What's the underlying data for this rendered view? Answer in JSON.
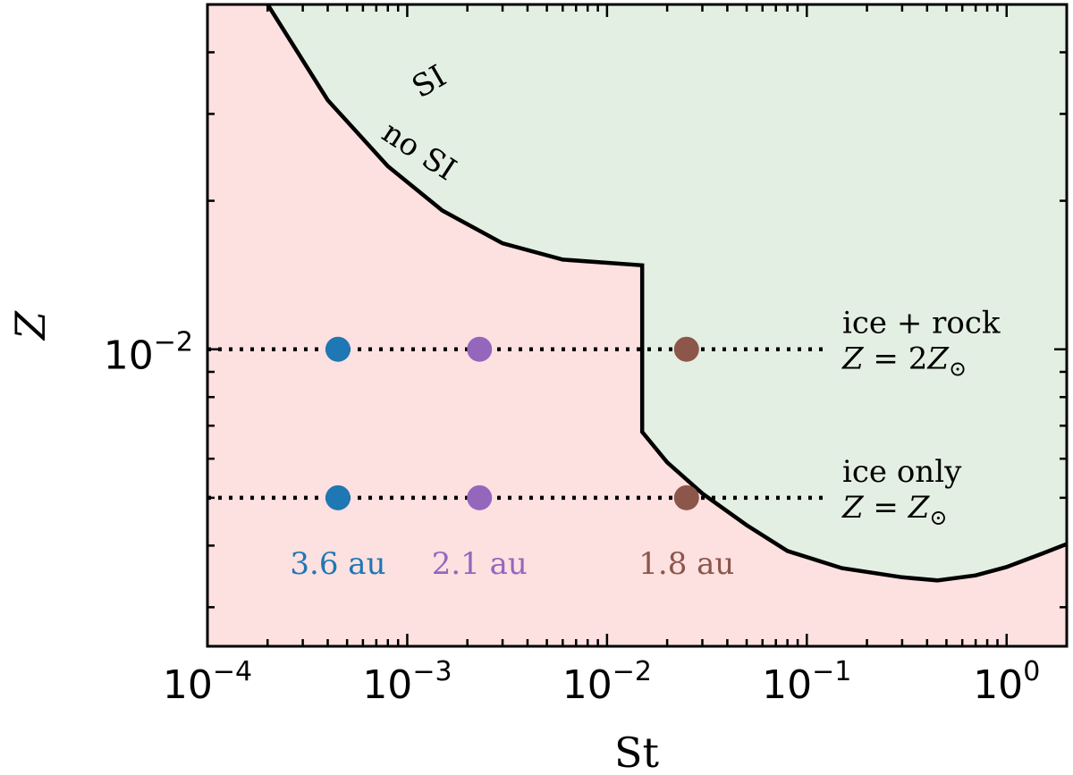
{
  "chart_data": {
    "type": "scatter",
    "xlabel": "St",
    "ylabel": "Z",
    "xscale": "log",
    "yscale": "log",
    "xlim": [
      0.0001,
      2.0
    ],
    "ylim": [
      0.0025,
      0.05
    ],
    "x_tick_labels": [
      {
        "value": 0.0001,
        "base": "10",
        "exp": "−4"
      },
      {
        "value": 0.001,
        "base": "10",
        "exp": "−3"
      },
      {
        "value": 0.01,
        "base": "10",
        "exp": "−2"
      },
      {
        "value": 0.1,
        "base": "10",
        "exp": "−1"
      },
      {
        "value": 1,
        "base": "10",
        "exp": "0"
      }
    ],
    "y_tick_labels": [
      {
        "value": 0.01,
        "base": "10",
        "exp": "−2"
      }
    ],
    "boundary_curve": [
      [
        0.0002,
        0.05
      ],
      [
        0.0004,
        0.032
      ],
      [
        0.0008,
        0.0235
      ],
      [
        0.0015,
        0.0191
      ],
      [
        0.003,
        0.0164
      ],
      [
        0.006,
        0.0152
      ],
      [
        0.015,
        0.0148
      ],
      [
        0.015,
        0.0068
      ],
      [
        0.02,
        0.0059
      ],
      [
        0.03,
        0.0051
      ],
      [
        0.05,
        0.0044
      ],
      [
        0.08,
        0.0039
      ],
      [
        0.15,
        0.0036
      ],
      [
        0.3,
        0.00345
      ],
      [
        0.45,
        0.0034
      ],
      [
        0.7,
        0.00348
      ],
      [
        1.0,
        0.00362
      ],
      [
        1.5,
        0.00385
      ],
      [
        2.0,
        0.00403
      ]
    ],
    "regions": {
      "stable_color": "#fde0e0",
      "unstable_color": "#e3efe2",
      "line_color": "#000000"
    },
    "region_labels": {
      "unstable": "SI",
      "stable": "no SI"
    },
    "reference_lines": [
      {
        "y": 0.01,
        "x_end": 0.12,
        "label_top": "ice + rock",
        "label_bottom_lhs": "Z",
        "label_bottom_rhs": "2Z",
        "label_bottom_sub": "⊙"
      },
      {
        "y": 0.005,
        "x_end": 0.12,
        "label_top": "ice only",
        "label_bottom_lhs": "Z",
        "label_bottom_rhs": "Z",
        "label_bottom_sub": "⊙"
      }
    ],
    "series": [
      {
        "name": "3.6 au",
        "color": "#1f77b4",
        "x": [
          0.00045,
          0.00045
        ],
        "y": [
          0.01,
          0.005
        ]
      },
      {
        "name": "2.1 au",
        "color": "#9467bd",
        "x": [
          0.0023,
          0.0023
        ],
        "y": [
          0.01,
          0.005
        ]
      },
      {
        "name": "1.8 au",
        "color": "#8c564b",
        "x": [
          0.025,
          0.025
        ],
        "y": [
          0.01,
          0.005
        ]
      }
    ]
  }
}
